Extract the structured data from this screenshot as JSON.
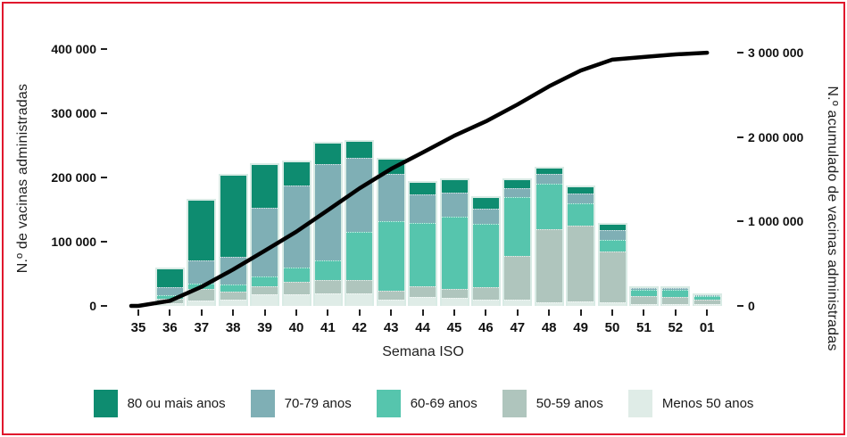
{
  "frame": {
    "background": "#ffffff",
    "border_color": "#e0182d",
    "text_color": "#1a1a1a",
    "bar_outline_color": "#d2e8e1",
    "line_color": "#000000"
  },
  "chart_data": {
    "type": "bar",
    "subtype": "stacked-bars-with-cumulative-line",
    "title": "",
    "categories": [
      "35",
      "36",
      "37",
      "38",
      "39",
      "40",
      "41",
      "42",
      "43",
      "44",
      "45",
      "46",
      "47",
      "48",
      "49",
      "50",
      "51",
      "52",
      "01"
    ],
    "series": [
      {
        "name": "80 ou mais anos",
        "color": "#0e8c70",
        "values": [
          0,
          32000,
          97000,
          131000,
          69000,
          37000,
          33000,
          25000,
          23000,
          19000,
          19000,
          17000,
          13000,
          8000,
          10000,
          9000,
          1000,
          1000,
          1000
        ]
      },
      {
        "name": "70-79 anos",
        "color": "#7fafb5",
        "values": [
          0,
          13000,
          37000,
          44000,
          109000,
          132000,
          153000,
          118000,
          76000,
          44000,
          39000,
          24000,
          14000,
          14000,
          14000,
          14000,
          2000,
          2000,
          1000
        ]
      },
      {
        "name": "60-69 anos",
        "color": "#56c5ad",
        "values": [
          0,
          6000,
          7000,
          10000,
          15000,
          21000,
          30000,
          76000,
          111000,
          102000,
          115000,
          102000,
          93000,
          72000,
          35000,
          18000,
          10000,
          12000,
          6000
        ]
      },
      {
        "name": "50-59 anos",
        "color": "#afc5bd",
        "values": [
          0,
          6000,
          17000,
          11000,
          12000,
          18000,
          21000,
          21000,
          12000,
          16000,
          14000,
          19000,
          70000,
          118000,
          122000,
          84000,
          16000,
          14000,
          10000
        ]
      },
      {
        "name": "Menos 50 anos",
        "color": "#dfece7",
        "values": [
          0,
          3000,
          8000,
          9000,
          17000,
          18000,
          18000,
          18000,
          9000,
          13000,
          11000,
          9000,
          9000,
          4000,
          6000,
          4000,
          2000,
          2000,
          2000
        ]
      }
    ],
    "line": {
      "name": "N.º acumulado de vacinas administradas",
      "color": "#000000",
      "values": [
        0,
        60000,
        226000,
        431000,
        653000,
        879000,
        1134000,
        1392000,
        1623000,
        1817000,
        2015000,
        2186000,
        2385000,
        2601000,
        2788000,
        2917000,
        2948000,
        2979000,
        2999000
      ]
    },
    "x_axis": {
      "label": "Semana ISO"
    },
    "left_axis": {
      "label": "N.º de vacinas administradas",
      "ylim": [
        0,
        400000
      ],
      "ticks": [
        {
          "label": "0",
          "value": 0
        },
        {
          "label": "100 000",
          "value": 100000
        },
        {
          "label": "200 000",
          "value": 200000
        },
        {
          "label": "300 000",
          "value": 300000
        },
        {
          "label": "400 000",
          "value": 400000
        }
      ]
    },
    "right_axis": {
      "label": "N.º acumulado de vacinas administradas",
      "ylim": [
        0,
        3000000
      ],
      "ticks": [
        {
          "label": "0",
          "value": 0
        },
        {
          "label": "1 000 000",
          "value": 1000000
        },
        {
          "label": "2 000 000",
          "value": 2000000
        },
        {
          "label": "3 000 000",
          "value": 3000000
        }
      ]
    },
    "grid": false,
    "legend_position": "bottom"
  }
}
